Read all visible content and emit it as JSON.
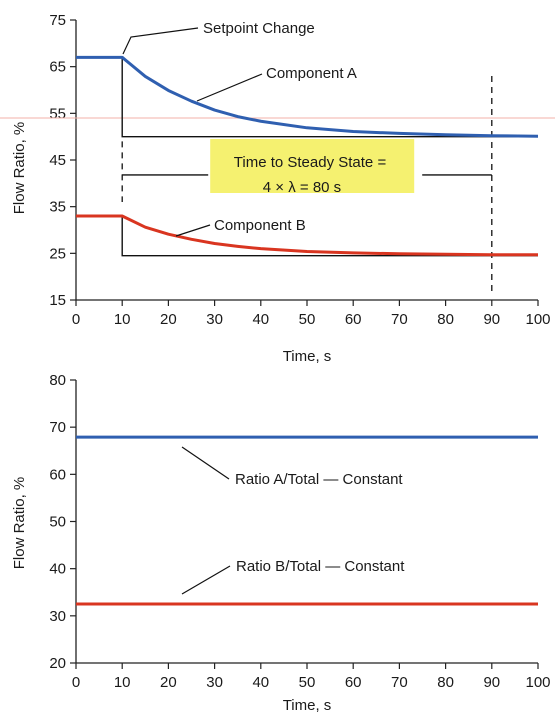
{
  "colors": {
    "component_a": "#2f5fb0",
    "component_b": "#d93520",
    "highlight": "#f4f060",
    "reference": "#f3b2a8",
    "axis": "#222222"
  },
  "chart_data": [
    {
      "type": "line",
      "xlabel": "Time, s",
      "ylabel": "Flow Ratio, %",
      "xlim": [
        0,
        100
      ],
      "ylim": [
        15,
        75
      ],
      "xticks": [
        0,
        10,
        20,
        30,
        40,
        50,
        60,
        70,
        80,
        90,
        100
      ],
      "yticks": [
        15,
        25,
        35,
        45,
        55,
        65,
        75
      ],
      "grid": false,
      "setpoint_time": 10,
      "steady_state_time": 90,
      "series": [
        {
          "name": "Component A",
          "x": [
            0,
            10,
            15,
            20,
            25,
            30,
            35,
            40,
            50,
            60,
            70,
            80,
            90,
            100
          ],
          "y": [
            67,
            67,
            62.9,
            59.9,
            57.6,
            55.7,
            54.3,
            53.3,
            51.9,
            51.1,
            50.7,
            50.4,
            50.2,
            50.1
          ]
        },
        {
          "name": "Component B",
          "x": [
            0,
            10,
            15,
            20,
            25,
            30,
            35,
            40,
            50,
            60,
            70,
            80,
            90,
            100
          ],
          "y": [
            33,
            33,
            30.6,
            29.1,
            28.0,
            27.1,
            26.5,
            26.0,
            25.4,
            25.1,
            24.9,
            24.8,
            24.7,
            24.7
          ]
        }
      ],
      "setpoint_steps": [
        {
          "from": 67,
          "to": 50
        },
        {
          "from": 33,
          "to": 24.5
        }
      ],
      "annotations": {
        "setpoint": "Setpoint Change",
        "component_a": "Component A",
        "component_b": "Component B",
        "steady_state_line1": "Time to Steady State =",
        "steady_state_line2": "4 × λ = 80 s"
      },
      "reference_line_y": 54
    },
    {
      "type": "line",
      "xlabel": "Time, s",
      "ylabel": "Flow Ratio, %",
      "xlim": [
        0,
        100
      ],
      "ylim": [
        20,
        80
      ],
      "xticks": [
        0,
        10,
        20,
        30,
        40,
        50,
        60,
        70,
        80,
        90,
        100
      ],
      "yticks": [
        20,
        30,
        40,
        50,
        60,
        70,
        80
      ],
      "grid": false,
      "series": [
        {
          "name": "Ratio A/Total — Constant",
          "x": [
            0,
            100
          ],
          "y": [
            67.9,
            67.9
          ]
        },
        {
          "name": "Ratio B/Total — Constant",
          "x": [
            0,
            100
          ],
          "y": [
            32.5,
            32.5
          ]
        }
      ],
      "annotations": {
        "ratio_a": "Ratio A/Total — Constant",
        "ratio_b": "Ratio B/Total — Constant"
      }
    }
  ]
}
